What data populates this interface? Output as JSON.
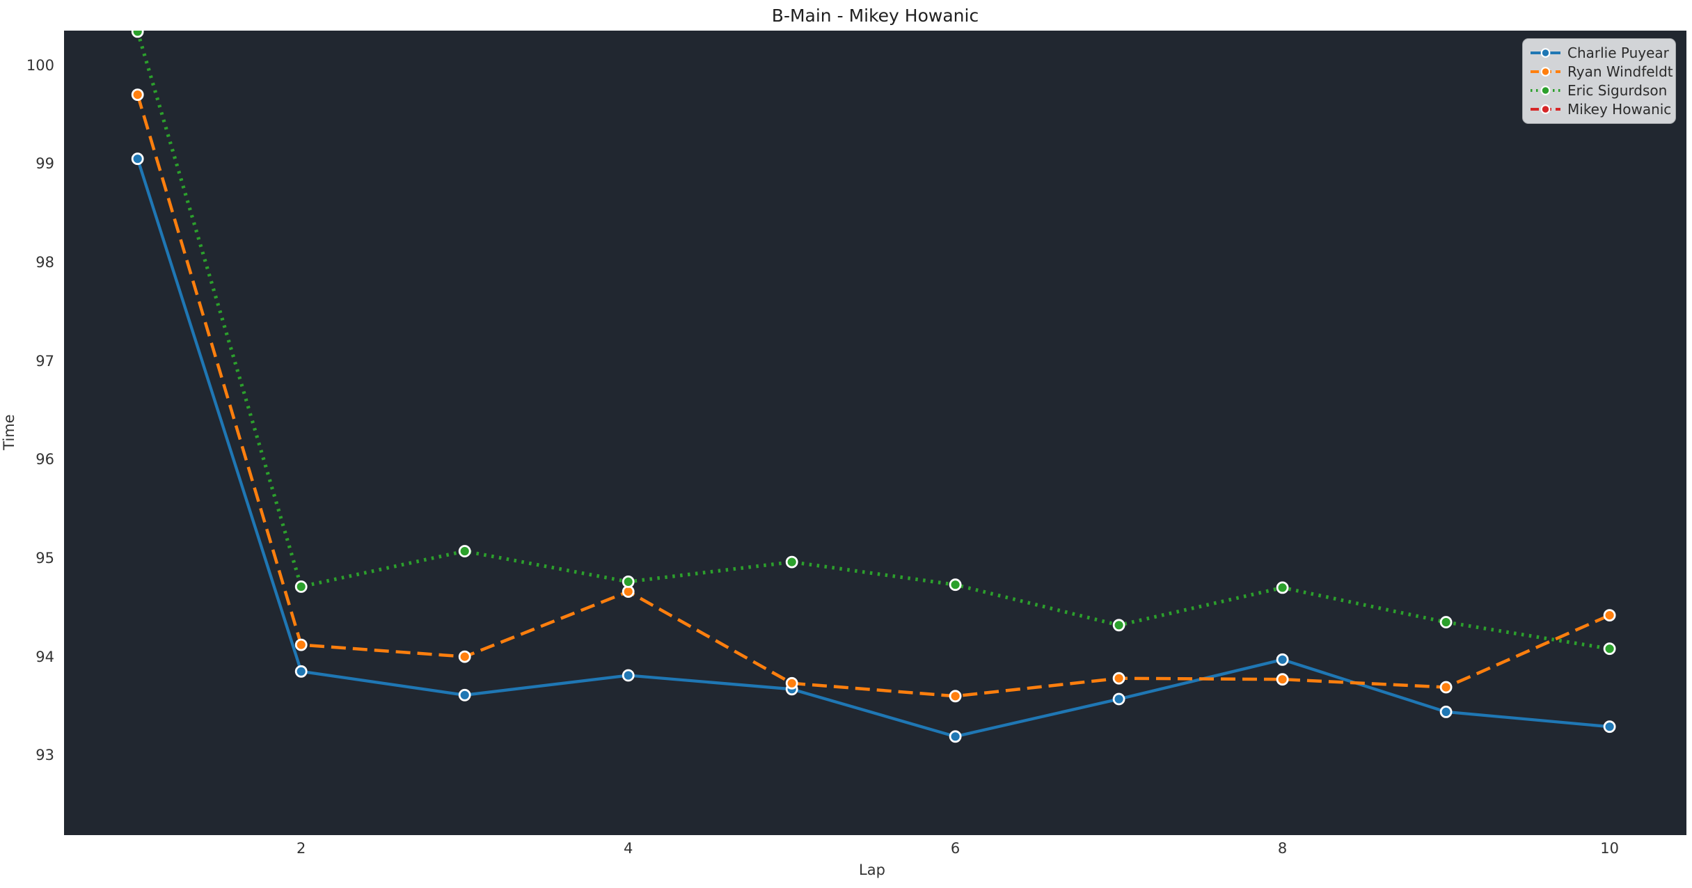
{
  "chart_data": {
    "type": "line",
    "title": "B-Main - Mikey Howanic",
    "xlabel": "Lap",
    "ylabel": "Time",
    "x": [
      1,
      2,
      3,
      4,
      5,
      6,
      7,
      8,
      9,
      10
    ],
    "xlim": [
      0.55,
      10.47
    ],
    "ylim": [
      92.19,
      100.35
    ],
    "xticks": [
      2,
      4,
      6,
      8,
      10
    ],
    "yticks": [
      93,
      94,
      95,
      96,
      97,
      98,
      99,
      100
    ],
    "grid": false,
    "legend_position": "upper right",
    "plot_background": "#212730",
    "figure_background": "#ffffff",
    "marker": "circle",
    "marker_edge_color": "#ffffff",
    "series": [
      {
        "name": "Charlie Puyear",
        "color": "#1f77b4",
        "line_style": "solid",
        "values": [
          99.05,
          93.85,
          93.61,
          93.81,
          93.67,
          93.19,
          93.57,
          93.97,
          93.44,
          93.29
        ]
      },
      {
        "name": "Ryan Windfeldt",
        "color": "#ff7f0e",
        "line_style": "dashed",
        "values": [
          99.7,
          94.12,
          94.0,
          94.66,
          93.73,
          93.6,
          93.78,
          93.77,
          93.69,
          94.42
        ]
      },
      {
        "name": "Eric Sigurdson",
        "color": "#2ca02c",
        "line_style": "dotted",
        "values": [
          100.34,
          94.71,
          95.07,
          94.76,
          94.96,
          94.73,
          94.32,
          94.7,
          94.35,
          94.08
        ]
      },
      {
        "name": "Mikey Howanic",
        "color": "#d62728",
        "line_style": "dashed",
        "values": [
          null,
          null,
          null,
          null,
          null,
          null,
          null,
          null,
          null,
          null
        ]
      }
    ]
  }
}
